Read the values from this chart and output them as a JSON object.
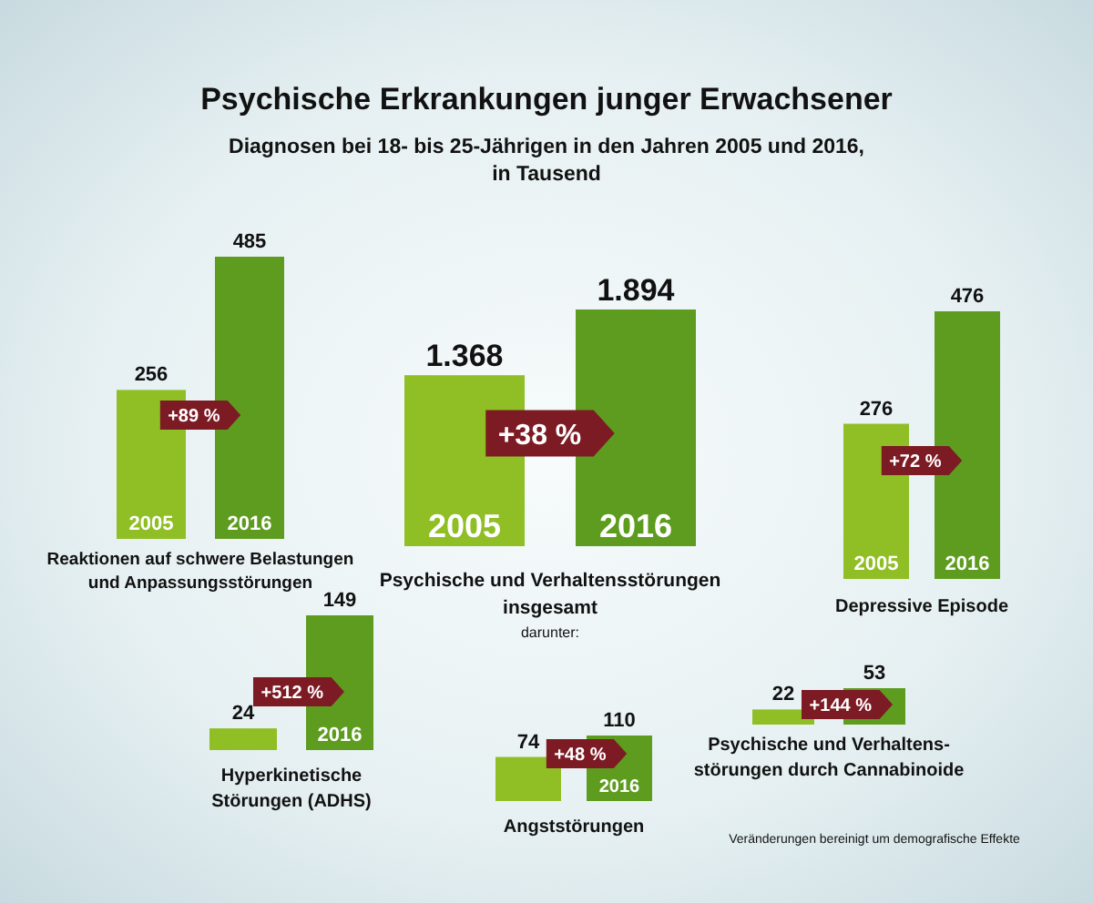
{
  "chart_data": [
    {
      "type": "bar",
      "title": "Psychische Erkrankungen junger Erwachsener",
      "subtitle": "Diagnosen bei 18- bis 25-Jährigen in den Jahren 2005 und 2016,\nin Tausend",
      "xlabel": "Reaktionen auf schwere Belastungen\nund Anpassungsstörungen",
      "categories": [
        "2005",
        "2016"
      ],
      "values": [
        256,
        485
      ],
      "colors": [
        "#8fbe25",
        "#5e9c1f"
      ],
      "data_labels": true,
      "annotations": [
        "+89 %"
      ]
    },
    {
      "type": "bar",
      "xlabel": "Psychische und Verhaltensstörungen\ninsgesamt",
      "categories": [
        "2005",
        "2016"
      ],
      "values": [
        1368,
        1894
      ],
      "colors": [
        "#8fbe25",
        "#5e9c1f"
      ],
      "value_labels": [
        "1.368",
        "1.894"
      ],
      "annotations": [
        "+38 %",
        "darunter:"
      ]
    },
    {
      "type": "bar",
      "xlabel": "Depressive Episode",
      "categories": [
        "2005",
        "2016"
      ],
      "values": [
        276,
        476
      ],
      "colors": [
        "#8fbe25",
        "#5e9c1f"
      ],
      "data_labels": true,
      "annotations": [
        "+72 %"
      ]
    },
    {
      "type": "bar",
      "xlabel": "Hyperkinetische\nStörungen (ADHS)",
      "categories": [
        null,
        "2016"
      ],
      "values": [
        24,
        149
      ],
      "colors": [
        "#8fbe25",
        "#5e9c1f"
      ],
      "data_labels": true,
      "annotations": [
        "+512 %"
      ]
    },
    {
      "type": "bar",
      "xlabel": "Angststörungen",
      "categories": [
        null,
        "2016"
      ],
      "values": [
        74,
        110
      ],
      "colors": [
        "#8fbe25",
        "#5e9c1f"
      ],
      "data_labels": true,
      "annotations": [
        "+48 %"
      ]
    },
    {
      "type": "bar",
      "xlabel": "Psychische und Verhaltens-\nstörungen durch Cannabinoide",
      "categories": [
        null,
        null
      ],
      "values": [
        22,
        53
      ],
      "colors": [
        "#8fbe25",
        "#5e9c1f"
      ],
      "data_labels": true,
      "annotations": [
        "+144 %",
        "Veränderungen bereinigt um demografische Effekte"
      ]
    }
  ]
}
